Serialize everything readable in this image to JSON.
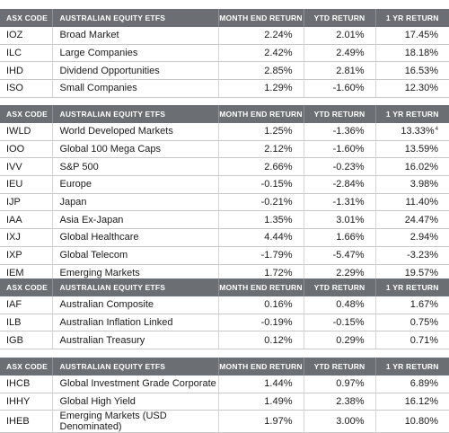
{
  "headers": {
    "code": "ASX CODE",
    "name": "AUSTRALIAN EQUITY ETFS",
    "month": "MONTH END RETURN",
    "ytd": "YTD RETURN",
    "yr": "1 YR RETURN"
  },
  "sections": [
    {
      "rows": [
        {
          "code": "IOZ",
          "name": "Broad Market",
          "month": "2.24%",
          "ytd": "2.01%",
          "yr": "17.45%",
          "fn": ""
        },
        {
          "code": "ILC",
          "name": "Large Companies",
          "month": "2.42%",
          "ytd": "2.49%",
          "yr": "18.18%",
          "fn": ""
        },
        {
          "code": "IHD",
          "name": "Dividend Opportunities",
          "month": "2.85%",
          "ytd": "2.81%",
          "yr": "16.53%",
          "fn": ""
        },
        {
          "code": "ISO",
          "name": "Small Companies",
          "month": "1.29%",
          "ytd": "-1.60%",
          "yr": "12.30%",
          "fn": ""
        }
      ]
    },
    {
      "rows": [
        {
          "code": "IWLD",
          "name": "World Developed Markets",
          "month": "1.25%",
          "ytd": "-1.36%",
          "yr": "13.33%",
          "fn": "4"
        },
        {
          "code": "IOO",
          "name": "Global 100 Mega Caps",
          "month": "2.12%",
          "ytd": "-1.60%",
          "yr": "13.59%",
          "fn": ""
        },
        {
          "code": "IVV",
          "name": "S&P 500",
          "month": "2.66%",
          "ytd": "-0.23%",
          "yr": "16.02%",
          "fn": ""
        },
        {
          "code": "IEU",
          "name": "Europe",
          "month": "-0.15%",
          "ytd": "-2.84%",
          "yr": "3.98%",
          "fn": ""
        },
        {
          "code": "IJP",
          "name": "Japan",
          "month": "-0.21%",
          "ytd": "-1.31%",
          "yr": "11.40%",
          "fn": ""
        },
        {
          "code": "IAA",
          "name": "Asia Ex-Japan",
          "month": "1.35%",
          "ytd": "3.01%",
          "yr": "24.47%",
          "fn": ""
        },
        {
          "code": "IXJ",
          "name": "Global Healthcare",
          "month": "4.44%",
          "ytd": "1.66%",
          "yr": "2.94%",
          "fn": ""
        },
        {
          "code": "IXP",
          "name": "Global Telecom",
          "month": "-1.79%",
          "ytd": "-5.47%",
          "yr": "-3.23%",
          "fn": ""
        },
        {
          "code": "IEM",
          "name": "Emerging Markets",
          "month": "1.72%",
          "ytd": "2.29%",
          "yr": "19.57%",
          "fn": ""
        }
      ]
    },
    {
      "rows": [
        {
          "code": "IAF",
          "name": "Australian Composite",
          "month": "0.16%",
          "ytd": "0.48%",
          "yr": "1.67%",
          "fn": ""
        },
        {
          "code": "ILB",
          "name": "Australian Inflation Linked",
          "month": "-0.19%",
          "ytd": "-0.15%",
          "yr": "0.75%",
          "fn": ""
        },
        {
          "code": "IGB",
          "name": "Australian Treasury",
          "month": "0.12%",
          "ytd": "0.29%",
          "yr": "0.71%",
          "fn": ""
        }
      ]
    },
    {
      "rows": [
        {
          "code": "IHCB",
          "name": "Global Investment Grade Corporate",
          "month": "1.44%",
          "ytd": "0.97%",
          "yr": "6.89%",
          "fn": ""
        },
        {
          "code": "IHHY",
          "name": "Global High Yield",
          "month": "1.49%",
          "ytd": "2.38%",
          "yr": "16.12%",
          "fn": ""
        },
        {
          "code": "IHEB",
          "name": "Emerging Markets (USD Denominated)",
          "month": "1.97%",
          "ytd": "3.00%",
          "yr": "10.80%",
          "fn": ""
        }
      ]
    }
  ]
}
